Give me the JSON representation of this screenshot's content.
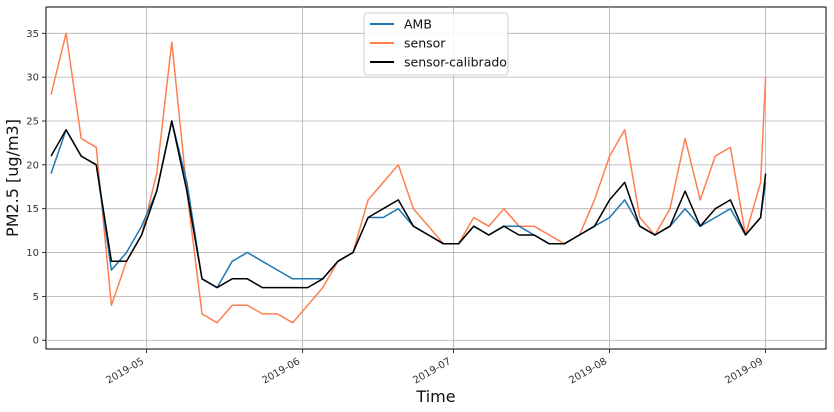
{
  "chart_data": {
    "type": "line",
    "xlabel": "Time",
    "ylabel": "PM2.5 [ug/m3]",
    "xlim": [
      "2019-04-11",
      "2019-09-13"
    ],
    "ylim": [
      -1,
      38
    ],
    "x_ticks": [
      "2019-05-01",
      "2019-06-01",
      "2019-07-01",
      "2019-08-01",
      "2019-09-01"
    ],
    "x_tick_labels": [
      "2019-05",
      "2019-06",
      "2019-07",
      "2019-08",
      "2019-09"
    ],
    "y_ticks": [
      0,
      5,
      10,
      15,
      20,
      25,
      30,
      35
    ],
    "y_tick_labels": [
      "0",
      "5",
      "10",
      "15",
      "20",
      "25",
      "30",
      "35"
    ],
    "grid": true,
    "legend_position": "top-center",
    "x": [
      "2019-04-12",
      "2019-04-15",
      "2019-04-18",
      "2019-04-21",
      "2019-04-24",
      "2019-04-27",
      "2019-04-30",
      "2019-05-03",
      "2019-05-06",
      "2019-05-09",
      "2019-05-12",
      "2019-05-15",
      "2019-05-18",
      "2019-05-21",
      "2019-05-24",
      "2019-05-27",
      "2019-05-30",
      "2019-06-02",
      "2019-06-05",
      "2019-06-08",
      "2019-06-11",
      "2019-06-14",
      "2019-06-17",
      "2019-06-20",
      "2019-06-23",
      "2019-06-26",
      "2019-06-29",
      "2019-07-02",
      "2019-07-05",
      "2019-07-08",
      "2019-07-11",
      "2019-07-14",
      "2019-07-17",
      "2019-07-20",
      "2019-07-23",
      "2019-07-26",
      "2019-07-29",
      "2019-08-01",
      "2019-08-04",
      "2019-08-07",
      "2019-08-10",
      "2019-08-13",
      "2019-08-16",
      "2019-08-19",
      "2019-08-22",
      "2019-08-25",
      "2019-08-28",
      "2019-08-31",
      "2019-09-01"
    ],
    "series": [
      {
        "name": "AMB",
        "color": "#1f77b4",
        "values": [
          19,
          24,
          21,
          20,
          8,
          10,
          13,
          17,
          25,
          18,
          7,
          6,
          9,
          10,
          9,
          8,
          7,
          7,
          7,
          9,
          10,
          14,
          14,
          15,
          13,
          12,
          11,
          11,
          13,
          12,
          13,
          13,
          12,
          11,
          11,
          12,
          13,
          14,
          16,
          13,
          12,
          13,
          15,
          13,
          14,
          15,
          12,
          14,
          18
        ]
      },
      {
        "name": "sensor",
        "color": "#ff7f50",
        "values": [
          28,
          35,
          23,
          22,
          4,
          9,
          12,
          19,
          34,
          17,
          3,
          2,
          4,
          4,
          3,
          3,
          2,
          4,
          6,
          9,
          10,
          16,
          18,
          20,
          15,
          13,
          11,
          11,
          14,
          13,
          15,
          13,
          13,
          12,
          11,
          12,
          16,
          21,
          24,
          14,
          12,
          15,
          23,
          16,
          21,
          22,
          12,
          18,
          30
        ]
      },
      {
        "name": "sensor-calibrado",
        "color": "#000000",
        "values": [
          21,
          24,
          21,
          20,
          9,
          9,
          12,
          17,
          25,
          17,
          7,
          6,
          7,
          7,
          6,
          6,
          6,
          6,
          7,
          9,
          10,
          14,
          15,
          16,
          13,
          12,
          11,
          11,
          13,
          12,
          13,
          12,
          12,
          11,
          11,
          12,
          13,
          16,
          18,
          13,
          12,
          13,
          17,
          13,
          15,
          16,
          12,
          14,
          19
        ]
      }
    ]
  }
}
